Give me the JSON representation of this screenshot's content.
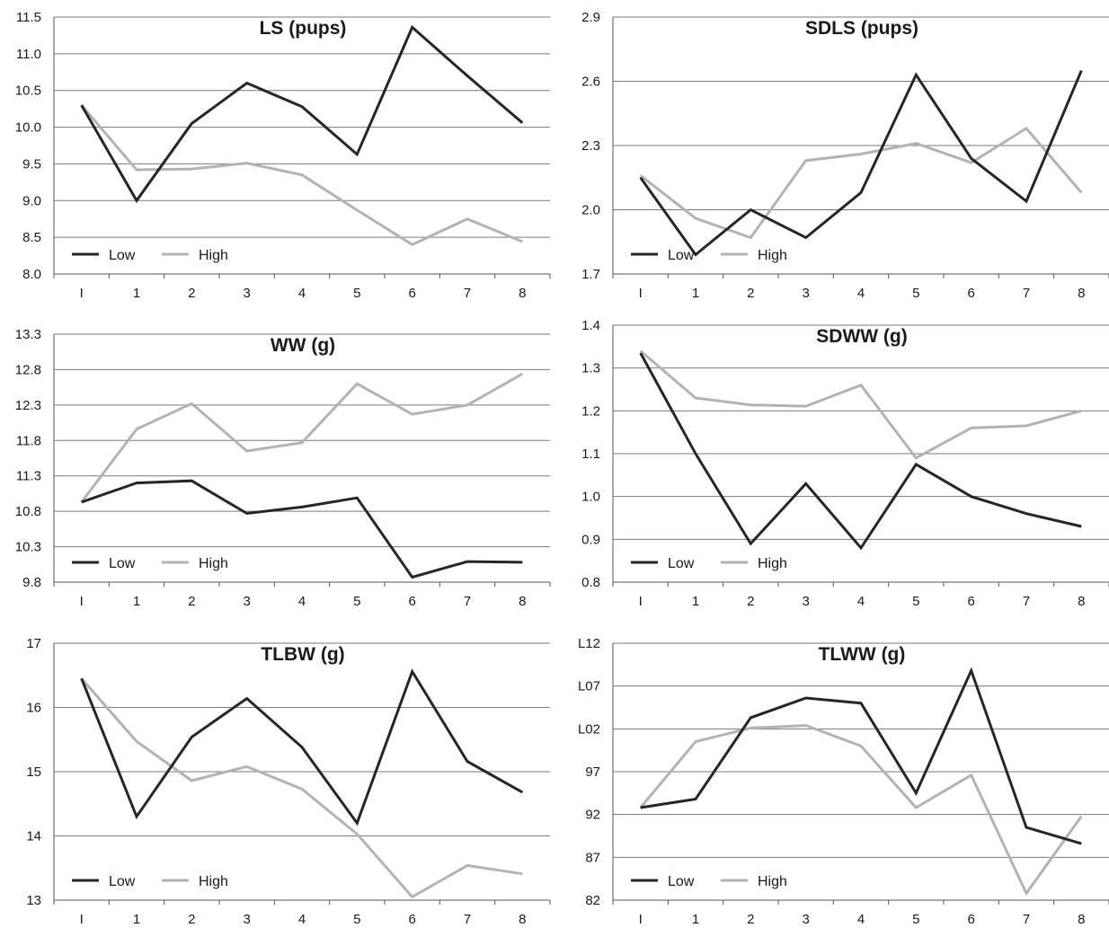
{
  "colors": {
    "low": "#262626",
    "high": "#b3b3b3",
    "grid": "#7a7a7a",
    "axis": "#555555"
  },
  "chart_data": [
    {
      "type": "line",
      "title": "LS (pups)",
      "categories": [
        "I",
        "1",
        "2",
        "3",
        "4",
        "5",
        "6",
        "7",
        "8"
      ],
      "ylim": [
        8.0,
        11.5
      ],
      "yticks": [
        "8.0",
        "8.5",
        "9.0",
        "9.5",
        "10.0",
        "10.5",
        "11.0",
        "11.5"
      ],
      "grid": true,
      "legend": "bottom-left",
      "series": [
        {
          "name": "Low",
          "values": [
            10.3,
            9.0,
            10.05,
            10.6,
            10.28,
            9.63,
            11.36,
            10.7,
            10.06
          ]
        },
        {
          "name": "High",
          "values": [
            10.3,
            9.42,
            9.43,
            9.51,
            9.35,
            8.87,
            8.4,
            8.75,
            8.44
          ]
        }
      ]
    },
    {
      "type": "line",
      "title": "SDLS (pups)",
      "categories": [
        "I",
        "1",
        "2",
        "3",
        "4",
        "5",
        "6",
        "7",
        "8"
      ],
      "ylim": [
        1.7,
        2.9
      ],
      "yticks": [
        "1.7",
        "2.0",
        "2.3",
        "2.6",
        "2.9"
      ],
      "grid": true,
      "legend": "bottom-left",
      "series": [
        {
          "name": "Low",
          "values": [
            2.15,
            1.79,
            2.0,
            1.87,
            2.08,
            2.63,
            2.24,
            2.04,
            2.65
          ]
        },
        {
          "name": "High",
          "values": [
            2.16,
            1.96,
            1.87,
            2.23,
            2.26,
            2.31,
            2.22,
            2.38,
            2.08
          ]
        }
      ]
    },
    {
      "type": "line",
      "title": "WW (g)",
      "categories": [
        "I",
        "1",
        "2",
        "3",
        "4",
        "5",
        "6",
        "7",
        "8"
      ],
      "ylim": [
        9.8,
        13.3
      ],
      "yticks": [
        "9.8",
        "10.3",
        "10.8",
        "11.3",
        "11.8",
        "12.3",
        "12.8",
        "13.3"
      ],
      "grid": true,
      "legend": "bottom-left",
      "series": [
        {
          "name": "Low",
          "values": [
            10.93,
            11.2,
            11.23,
            10.77,
            10.86,
            10.99,
            9.87,
            10.09,
            10.08
          ]
        },
        {
          "name": "High",
          "values": [
            10.93,
            11.96,
            12.32,
            11.65,
            11.77,
            12.6,
            12.17,
            12.3,
            12.74
          ]
        }
      ]
    },
    {
      "type": "line",
      "title": "SDWW (g)",
      "categories": [
        "I",
        "1",
        "2",
        "3",
        "4",
        "5",
        "6",
        "7",
        "8"
      ],
      "ylim": [
        0.8,
        1.4
      ],
      "yticks": [
        "0.8",
        "0.9",
        "1.0",
        "1.1",
        "1.2",
        "1.3",
        "1.4"
      ],
      "grid": true,
      "legend": "bottom-left",
      "series": [
        {
          "name": "Low",
          "values": [
            1.335,
            1.1,
            0.89,
            1.03,
            0.88,
            1.075,
            1.0,
            0.96,
            0.93
          ]
        },
        {
          "name": "High",
          "values": [
            1.34,
            1.23,
            1.214,
            1.211,
            1.26,
            1.09,
            1.16,
            1.165,
            1.2
          ]
        }
      ]
    },
    {
      "type": "line",
      "title": "TLBW (g)",
      "categories": [
        "I",
        "1",
        "2",
        "3",
        "4",
        "5",
        "6",
        "7",
        "8"
      ],
      "ylim": [
        13,
        17
      ],
      "yticks": [
        "13",
        "14",
        "15",
        "16",
        "17"
      ],
      "grid": true,
      "legend": "bottom-left",
      "series": [
        {
          "name": "Low",
          "values": [
            16.45,
            14.3,
            15.54,
            16.14,
            15.38,
            14.2,
            16.56,
            15.16,
            14.68
          ]
        },
        {
          "name": "High",
          "values": [
            16.45,
            15.47,
            14.86,
            15.08,
            14.73,
            14.03,
            13.05,
            13.54,
            13.41
          ]
        }
      ]
    },
    {
      "type": "line",
      "title": "TLWW (g)",
      "categories": [
        "I",
        "1",
        "2",
        "3",
        "4",
        "5",
        "6",
        "7",
        "8"
      ],
      "ylim": [
        82,
        112
      ],
      "yticks": [
        "82",
        "87",
        "92",
        "97",
        "L02",
        "L07",
        "L12"
      ],
      "grid": true,
      "legend": "bottom-left",
      "series": [
        {
          "name": "Low",
          "values": [
            92.8,
            93.8,
            103.3,
            105.6,
            105.0,
            94.5,
            108.8,
            90.5,
            88.6
          ]
        },
        {
          "name": "High",
          "values": [
            92.8,
            100.5,
            102.1,
            102.4,
            100.0,
            92.8,
            96.6,
            82.8,
            91.8
          ]
        }
      ]
    }
  ]
}
